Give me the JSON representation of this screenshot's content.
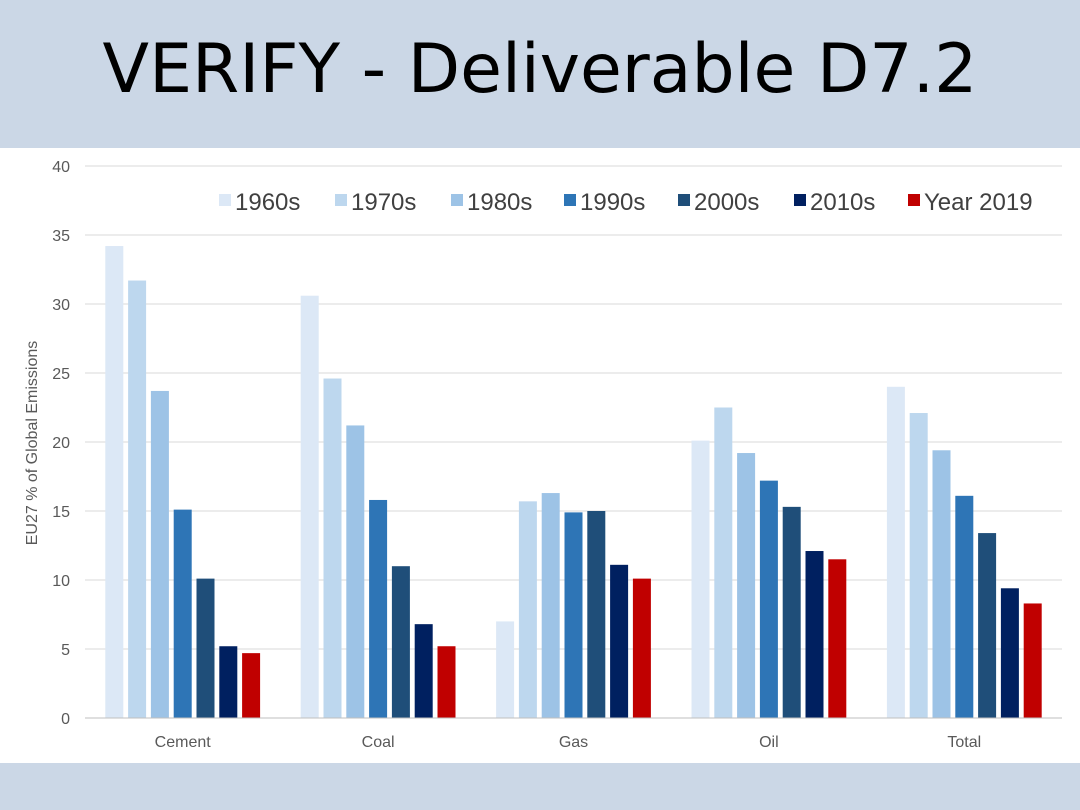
{
  "slide": {
    "title": "VERIFY - Deliverable D7.2"
  },
  "chart_data": {
    "type": "bar",
    "title": "",
    "xlabel": "",
    "ylabel": "EU27 % of Global Emissions",
    "ylim": [
      0,
      40
    ],
    "yticks": [
      "0",
      "5",
      "10",
      "15",
      "20",
      "25",
      "30",
      "35",
      "40"
    ],
    "grid": true,
    "legend_position": "top-right",
    "categories": [
      "Cement",
      "Coal",
      "Gas",
      "Oil",
      "Total"
    ],
    "series": [
      {
        "name": "1960s",
        "color": "#dce8f6",
        "values": [
          34.2,
          30.6,
          7.0,
          20.1,
          24.0
        ]
      },
      {
        "name": "1970s",
        "color": "#bdd7ee",
        "values": [
          31.7,
          24.6,
          15.7,
          22.5,
          22.1
        ]
      },
      {
        "name": "1980s",
        "color": "#9dc3e6",
        "values": [
          23.7,
          21.2,
          16.3,
          19.2,
          19.4
        ]
      },
      {
        "name": "1990s",
        "color": "#2e75b6",
        "values": [
          15.1,
          15.8,
          14.9,
          17.2,
          16.1
        ]
      },
      {
        "name": "2000s",
        "color": "#1f4e79",
        "values": [
          10.1,
          11.0,
          15.0,
          15.3,
          13.4
        ]
      },
      {
        "name": "2010s",
        "color": "#002060",
        "values": [
          5.2,
          6.8,
          11.1,
          12.1,
          9.4
        ]
      },
      {
        "name": "Year 2019",
        "color": "#c00000",
        "values": [
          4.7,
          5.2,
          10.1,
          11.5,
          8.3
        ]
      }
    ]
  }
}
